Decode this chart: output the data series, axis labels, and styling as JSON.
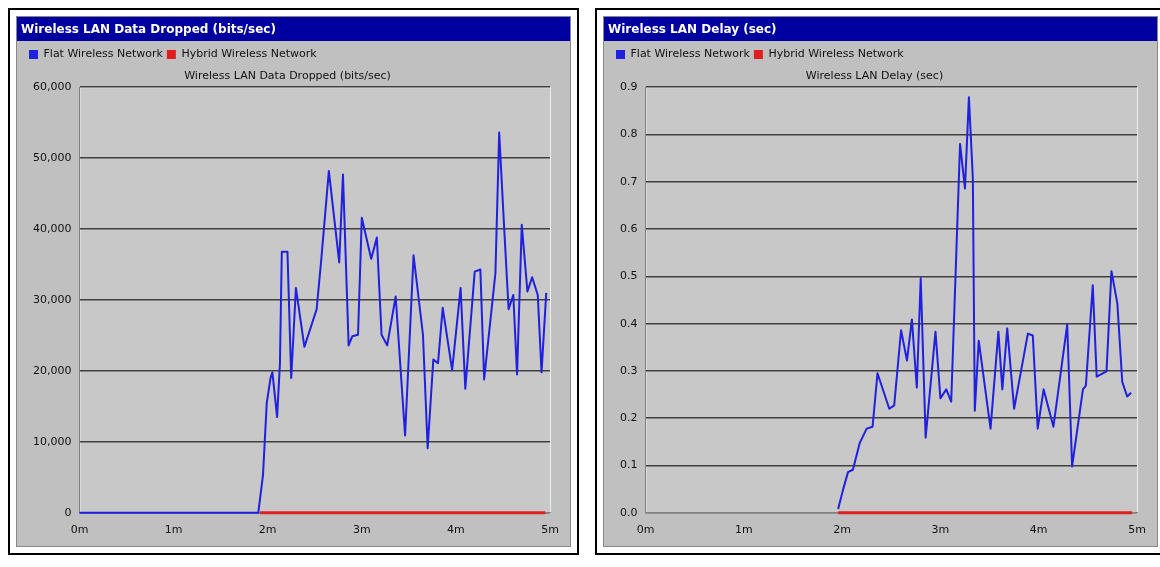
{
  "chart_data": [
    {
      "type": "line",
      "title": "Wireless LAN Data Dropped (bits/sec)",
      "subtitle": "Wireless LAN Data Dropped (bits/sec)",
      "legend": "top left",
      "grid": "y",
      "marker": "none",
      "line_style": "solid",
      "xlim": [
        0,
        5
      ],
      "xticks": [
        {
          "value": 0,
          "label": "0m"
        },
        {
          "value": 1,
          "label": "1m"
        },
        {
          "value": 2,
          "label": "2m"
        },
        {
          "value": 3,
          "label": "3m"
        },
        {
          "value": 4,
          "label": "4m"
        },
        {
          "value": 5,
          "label": "5m"
        }
      ],
      "ylim": [
        0,
        60000
      ],
      "yticks": [
        0,
        {
          "value": 10000,
          "label": "10,000"
        },
        {
          "value": 20000,
          "label": "20,000"
        },
        {
          "value": 30000,
          "label": "30,000"
        },
        {
          "value": 40000,
          "label": "40,000"
        },
        {
          "value": 50000,
          "label": "50,000"
        },
        {
          "value": 60000,
          "label": "60,000"
        }
      ],
      "series": [
        {
          "name": "Flat Wireless Network",
          "color": "#2020e0",
          "x": [
            0,
            1.9,
            1.95,
            1.99,
            2.03,
            2.05,
            2.1,
            2.13,
            2.15,
            2.21,
            2.25,
            2.3,
            2.39,
            2.52,
            2.57,
            2.65,
            2.76,
            2.8,
            2.86,
            2.9,
            2.96,
            3.0,
            3.1,
            3.16,
            3.21,
            3.27,
            3.36,
            3.46,
            3.55,
            3.65,
            3.7,
            3.76,
            3.81,
            3.86,
            3.96,
            4.05,
            4.1,
            4.2,
            4.26,
            4.3,
            4.42,
            4.46,
            4.51,
            4.56,
            4.61,
            4.65,
            4.7,
            4.76,
            4.81,
            4.87,
            4.91,
            4.96
          ],
          "values": [
            0,
            0,
            5300,
            15500,
            19000,
            19800,
            13500,
            21000,
            36800,
            36800,
            19000,
            31700,
            23400,
            28700,
            35800,
            48200,
            35300,
            47700,
            23600,
            24900,
            25100,
            41600,
            35800,
            38800,
            25100,
            23600,
            30500,
            10900,
            36300,
            25100,
            9100,
            21600,
            21100,
            28900,
            20100,
            31700,
            17500,
            34000,
            34300,
            18800,
            33800,
            53600,
            40900,
            28700,
            30700,
            19500,
            40600,
            31200,
            33200,
            30700,
            19800,
            31000
          ]
        },
        {
          "name": "Hybrid Wireless Network",
          "color": "#e02020",
          "x": [
            1.92,
            4.95
          ],
          "values": [
            0,
            0
          ]
        }
      ]
    },
    {
      "type": "line",
      "title": "Wireless LAN Delay (sec)",
      "subtitle": "Wireless LAN Delay (sec)",
      "legend": "top left",
      "grid": "y",
      "marker": "none",
      "line_style": "solid",
      "xlim": [
        0,
        5
      ],
      "xticks": [
        {
          "value": 0,
          "label": "0m"
        },
        {
          "value": 1,
          "label": "1m"
        },
        {
          "value": 2,
          "label": "2m"
        },
        {
          "value": 3,
          "label": "3m"
        },
        {
          "value": 4,
          "label": "4m"
        },
        {
          "value": 5,
          "label": "5m"
        }
      ],
      "ylim": [
        0,
        0.9
      ],
      "yticks": [
        {
          "value": 0,
          "label": "0.0"
        },
        0.1,
        0.2,
        0.3,
        0.4,
        0.5,
        0.6,
        0.7,
        0.8,
        0.9
      ],
      "series": [
        {
          "name": "Flat Wireless Network",
          "color": "#2020e0",
          "x": [
            1.96,
            2.01,
            2.06,
            2.11,
            2.18,
            2.25,
            2.31,
            2.36,
            2.48,
            2.53,
            2.6,
            2.66,
            2.71,
            2.76,
            2.8,
            2.85,
            2.95,
            3.0,
            3.06,
            3.11,
            3.2,
            3.25,
            3.29,
            3.33,
            3.35,
            3.39,
            3.51,
            3.59,
            3.63,
            3.68,
            3.75,
            3.89,
            3.94,
            3.99,
            4.05,
            4.15,
            4.29,
            4.34,
            4.45,
            4.48,
            4.55,
            4.59,
            4.69,
            4.74,
            4.8,
            4.85,
            4.9,
            4.94
          ],
          "values": [
            0.008,
            0.049,
            0.086,
            0.091,
            0.148,
            0.178,
            0.182,
            0.295,
            0.22,
            0.227,
            0.386,
            0.322,
            0.409,
            0.265,
            0.496,
            0.159,
            0.383,
            0.242,
            0.261,
            0.235,
            0.78,
            0.686,
            0.879,
            0.708,
            0.216,
            0.364,
            0.178,
            0.383,
            0.261,
            0.39,
            0.22,
            0.379,
            0.375,
            0.178,
            0.261,
            0.182,
            0.398,
            0.098,
            0.261,
            0.269,
            0.481,
            0.288,
            0.299,
            0.511,
            0.443,
            0.277,
            0.246,
            0.254
          ]
        },
        {
          "name": "Hybrid Wireless Network",
          "color": "#e02020",
          "x": [
            1.96,
            4.95
          ],
          "values": [
            0,
            0
          ]
        }
      ]
    }
  ]
}
